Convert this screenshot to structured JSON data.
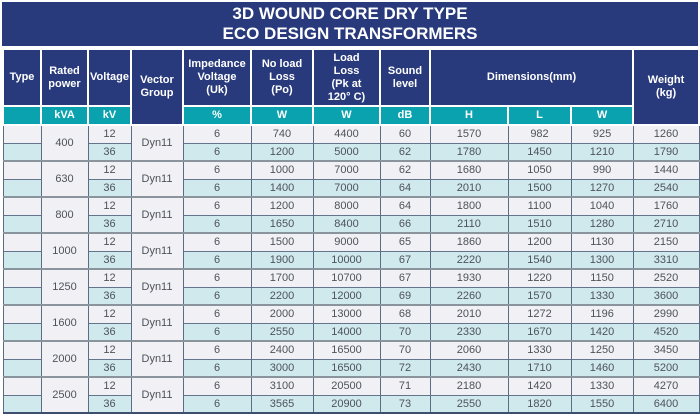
{
  "title": {
    "line1": "3D WOUND CORE DRY TYPE",
    "line2": "ECO DESIGN TRANSFORMERS"
  },
  "columns": [
    {
      "id": "type",
      "label": "Type",
      "label_lines": [
        "Type"
      ],
      "unit": ""
    },
    {
      "id": "rated_power",
      "label": "Rated power",
      "label_lines": [
        "Rated",
        "power"
      ],
      "unit": "kVA"
    },
    {
      "id": "voltage",
      "label": "Voltage",
      "label_lines": [
        "Voltage"
      ],
      "unit": "kV"
    },
    {
      "id": "vector_group",
      "label": "Vector Group",
      "label_lines": [
        "Vector",
        "Group"
      ]
    },
    {
      "id": "impedance_voltage",
      "label": "Impedance Voltage (Uk)",
      "label_lines": [
        "Impedance",
        "Voltage",
        "(Uk)"
      ],
      "unit": "%"
    },
    {
      "id": "no_load_loss",
      "label": "No load Loss (Po)",
      "label_lines": [
        "No load",
        "Loss",
        "(Po)"
      ],
      "unit": "W"
    },
    {
      "id": "load_loss",
      "label": "Load Loss (Pk at 120° C)",
      "label_lines": [
        "Load",
        "Loss",
        "(Pk at",
        "120° C)"
      ],
      "unit": "W"
    },
    {
      "id": "sound_level",
      "label": "Sound level",
      "label_lines": [
        "Sound",
        "level"
      ],
      "unit": "dB"
    },
    {
      "id": "dimensions",
      "label": "Dimensions(mm)",
      "label_lines": [
        "Dimensions(mm)"
      ],
      "units": [
        "H",
        "L",
        "W"
      ]
    },
    {
      "id": "weight",
      "label": "Weight (kg)",
      "label_lines": [
        "Weight",
        "(kg)"
      ]
    }
  ],
  "groups": [
    {
      "rated_power": "400",
      "vector_group": "Dyn11",
      "rows": [
        {
          "type": "",
          "voltage": "12",
          "impedance": "6",
          "no_load_loss": "740",
          "load_loss": "4400",
          "sound_level": "60",
          "dim_h": "1570",
          "dim_l": "982",
          "dim_w": "925",
          "weight": "1260"
        },
        {
          "type": "",
          "voltage": "36",
          "impedance": "6",
          "no_load_loss": "1200",
          "load_loss": "5000",
          "sound_level": "62",
          "dim_h": "1780",
          "dim_l": "1450",
          "dim_w": "1210",
          "weight": "1790"
        }
      ]
    },
    {
      "rated_power": "630",
      "vector_group": "Dyn11",
      "rows": [
        {
          "type": "",
          "voltage": "12",
          "impedance": "6",
          "no_load_loss": "1000",
          "load_loss": "7000",
          "sound_level": "62",
          "dim_h": "1680",
          "dim_l": "1050",
          "dim_w": "990",
          "weight": "1440"
        },
        {
          "type": "",
          "voltage": "36",
          "impedance": "6",
          "no_load_loss": "1400",
          "load_loss": "7000",
          "sound_level": "64",
          "dim_h": "2010",
          "dim_l": "1500",
          "dim_w": "1270",
          "weight": "2540"
        }
      ]
    },
    {
      "rated_power": "800",
      "vector_group": "Dyn11",
      "rows": [
        {
          "type": "",
          "voltage": "12",
          "impedance": "6",
          "no_load_loss": "1200",
          "load_loss": "8000",
          "sound_level": "64",
          "dim_h": "1800",
          "dim_l": "1100",
          "dim_w": "1040",
          "weight": "1760"
        },
        {
          "type": "",
          "voltage": "36",
          "impedance": "6",
          "no_load_loss": "1650",
          "load_loss": "8400",
          "sound_level": "66",
          "dim_h": "2110",
          "dim_l": "1510",
          "dim_w": "1280",
          "weight": "2710"
        }
      ]
    },
    {
      "rated_power": "1000",
      "vector_group": "Dyn11",
      "rows": [
        {
          "type": "",
          "voltage": "12",
          "impedance": "6",
          "no_load_loss": "1500",
          "load_loss": "9000",
          "sound_level": "65",
          "dim_h": "1860",
          "dim_l": "1200",
          "dim_w": "1130",
          "weight": "2150"
        },
        {
          "type": "",
          "voltage": "36",
          "impedance": "6",
          "no_load_loss": "1900",
          "load_loss": "10000",
          "sound_level": "67",
          "dim_h": "2220",
          "dim_l": "1540",
          "dim_w": "1300",
          "weight": "3310"
        }
      ]
    },
    {
      "rated_power": "1250",
      "vector_group": "Dyn11",
      "rows": [
        {
          "type": "",
          "voltage": "12",
          "impedance": "6",
          "no_load_loss": "1700",
          "load_loss": "10700",
          "sound_level": "67",
          "dim_h": "1930",
          "dim_l": "1220",
          "dim_w": "1150",
          "weight": "2520"
        },
        {
          "type": "",
          "voltage": "36",
          "impedance": "6",
          "no_load_loss": "2200",
          "load_loss": "12000",
          "sound_level": "69",
          "dim_h": "2260",
          "dim_l": "1570",
          "dim_w": "1330",
          "weight": "3600"
        }
      ]
    },
    {
      "rated_power": "1600",
      "vector_group": "Dyn11",
      "rows": [
        {
          "type": "",
          "voltage": "12",
          "impedance": "6",
          "no_load_loss": "2000",
          "load_loss": "13000",
          "sound_level": "68",
          "dim_h": "2010",
          "dim_l": "1272",
          "dim_w": "1196",
          "weight": "2990"
        },
        {
          "type": "",
          "voltage": "36",
          "impedance": "6",
          "no_load_loss": "2550",
          "load_loss": "14000",
          "sound_level": "70",
          "dim_h": "2330",
          "dim_l": "1670",
          "dim_w": "1420",
          "weight": "4520"
        }
      ]
    },
    {
      "rated_power": "2000",
      "vector_group": "Dyn11",
      "rows": [
        {
          "type": "",
          "voltage": "12",
          "impedance": "6",
          "no_load_loss": "2400",
          "load_loss": "16500",
          "sound_level": "70",
          "dim_h": "2060",
          "dim_l": "1330",
          "dim_w": "1250",
          "weight": "3450"
        },
        {
          "type": "",
          "voltage": "36",
          "impedance": "6",
          "no_load_loss": "3000",
          "load_loss": "16500",
          "sound_level": "72",
          "dim_h": "2430",
          "dim_l": "1710",
          "dim_w": "1460",
          "weight": "5200"
        }
      ]
    },
    {
      "rated_power": "2500",
      "vector_group": "Dyn11",
      "rows": [
        {
          "type": "",
          "voltage": "12",
          "impedance": "6",
          "no_load_loss": "3100",
          "load_loss": "20500",
          "sound_level": "71",
          "dim_h": "2180",
          "dim_l": "1420",
          "dim_w": "1330",
          "weight": "4270"
        },
        {
          "type": "",
          "voltage": "36",
          "impedance": "6",
          "no_load_loss": "3565",
          "load_loss": "20900",
          "sound_level": "73",
          "dim_h": "2550",
          "dim_l": "1820",
          "dim_w": "1550",
          "weight": "6400"
        }
      ]
    }
  ],
  "colors": {
    "navy": "#283A7B",
    "teal": "#0AA2AE",
    "row_light": "#F1F0F5",
    "row_cyan": "#D0E9ED"
  }
}
